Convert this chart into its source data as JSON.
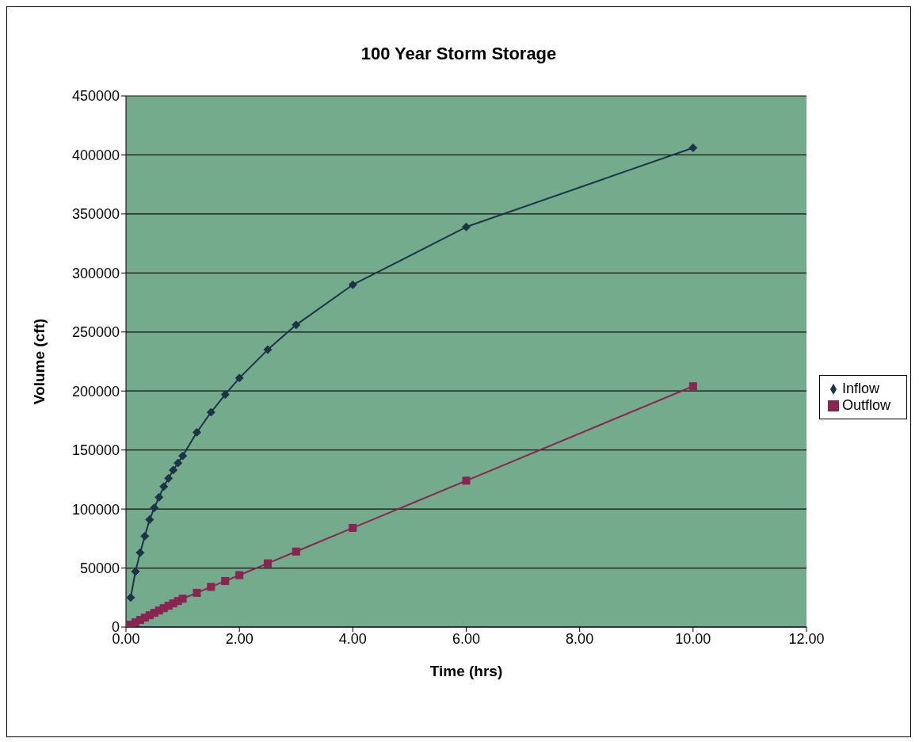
{
  "chart_data": {
    "type": "line",
    "title": "100 Year Storm Storage",
    "xlabel": "Time (hrs)",
    "ylabel": "Volume (cft)",
    "xlim": [
      0,
      12
    ],
    "xticks": [
      {
        "value": 0,
        "label": "0.00"
      },
      {
        "value": 2,
        "label": "2.00"
      },
      {
        "value": 4,
        "label": "4.00"
      },
      {
        "value": 6,
        "label": "6.00"
      },
      {
        "value": 8,
        "label": "8.00"
      },
      {
        "value": 10,
        "label": "10.00"
      },
      {
        "value": 12,
        "label": "12.00"
      }
    ],
    "ylim": [
      0,
      450000
    ],
    "yticks": [
      0,
      50000,
      100000,
      150000,
      200000,
      250000,
      300000,
      350000,
      400000,
      450000
    ],
    "grid": "y",
    "legend": "right",
    "line_style": "solid",
    "series": [
      {
        "name": "Inflow",
        "color": "#1c3448",
        "marker": "diamond",
        "x": [
          0.083,
          0.167,
          0.25,
          0.333,
          0.417,
          0.5,
          0.583,
          0.667,
          0.75,
          0.833,
          0.917,
          1,
          1.25,
          1.5,
          1.75,
          2,
          2.5,
          3,
          4,
          6,
          10
        ],
        "values": [
          25000,
          47000,
          63000,
          77000,
          91000,
          101000,
          110000,
          119000,
          126000,
          133000,
          139000,
          145000,
          165000,
          182000,
          197000,
          211000,
          235000,
          256000,
          290000,
          339000,
          406000
        ]
      },
      {
        "name": "Outflow",
        "color": "#8a2452",
        "marker": "square",
        "x": [
          0,
          0.083,
          0.167,
          0.25,
          0.333,
          0.417,
          0.5,
          0.583,
          0.667,
          0.75,
          0.833,
          0.917,
          1,
          1.25,
          1.5,
          1.75,
          2,
          2.5,
          3,
          4,
          6,
          10
        ],
        "values": [
          0,
          2000,
          4000,
          6000,
          8000,
          10000,
          12000,
          14000,
          16000,
          18000,
          20000,
          22000,
          24000,
          29000,
          34000,
          39000,
          44000,
          54000,
          64000,
          84000,
          124000,
          204000
        ]
      }
    ]
  }
}
